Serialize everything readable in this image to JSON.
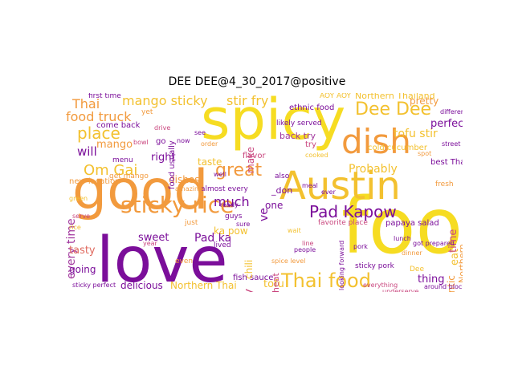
{
  "title": "DEE DEE@4_30_2017@positive",
  "palette": {
    "purple": "#7b0e9a",
    "violet": "#a2389e",
    "magenta": "#c9467e",
    "rose": "#e06a5f",
    "orange": "#f29a3d",
    "amber": "#f3c12f",
    "yellow": "#f6dc22"
  },
  "words": [
    {
      "id": "spicy",
      "text": "spicy"
    },
    {
      "id": "food",
      "text": "food"
    },
    {
      "id": "good",
      "text": "good"
    },
    {
      "id": "love",
      "text": "love"
    },
    {
      "id": "austin",
      "text": "Austin"
    },
    {
      "id": "dish",
      "text": "dish"
    },
    {
      "id": "sticky-rice",
      "text": "sticky rice"
    },
    {
      "id": "thai-food",
      "text": "Thai food"
    },
    {
      "id": "pad-kapow",
      "text": "Pad Kapow"
    },
    {
      "id": "great",
      "text": "great"
    },
    {
      "id": "dee-dee",
      "text": "Dee Dee"
    },
    {
      "id": "om-gai",
      "text": "Om Gai"
    },
    {
      "id": "place",
      "text": "place"
    },
    {
      "id": "mango-sticky",
      "text": "mango sticky"
    },
    {
      "id": "stir-fry",
      "text": "stir fry"
    },
    {
      "id": "food-truck",
      "text": "food truck"
    },
    {
      "id": "thai",
      "text": "Thai"
    },
    {
      "id": "much",
      "text": "much"
    },
    {
      "id": "every-time",
      "text": "every time"
    },
    {
      "id": "tofu-stir",
      "text": "tofu stir"
    },
    {
      "id": "probably",
      "text": "Probably"
    },
    {
      "id": "northern-thailand",
      "text": "Northern Thailand"
    },
    {
      "id": "northern-thai",
      "text": "Northern Thai"
    },
    {
      "id": "sweet",
      "text": "sweet"
    },
    {
      "id": "tasty",
      "text": "tasty"
    },
    {
      "id": "delicious",
      "text": "delicious"
    },
    {
      "id": "tofu",
      "text": "tofu"
    },
    {
      "id": "thing",
      "text": "thing"
    },
    {
      "id": "pad-ka",
      "text": "Pad ka"
    },
    {
      "id": "really",
      "text": "really"
    },
    {
      "id": "perfect",
      "text": "perfect"
    },
    {
      "id": "pretty",
      "text": "pretty"
    },
    {
      "id": "will",
      "text": "will"
    },
    {
      "id": "mango",
      "text": "mango"
    },
    {
      "id": "right",
      "text": "right"
    },
    {
      "id": "taste",
      "text": "taste"
    },
    {
      "id": "make",
      "text": "make"
    },
    {
      "id": "one",
      "text": "one"
    },
    {
      "id": "dishes",
      "text": "dishes"
    },
    {
      "id": "ka-pow",
      "text": "ka pow"
    },
    {
      "id": "eat",
      "text": "eat"
    },
    {
      "id": "time",
      "text": "time"
    },
    {
      "id": "going",
      "text": "going"
    },
    {
      "id": "authentic",
      "text": "authentic"
    },
    {
      "id": "favorite-place",
      "text": "favorite place"
    },
    {
      "id": "papaya-salad",
      "text": "papaya salad"
    },
    {
      "id": "best-thai",
      "text": "best Thai"
    },
    {
      "id": "cold-cucumber",
      "text": "cold cucumber"
    },
    {
      "id": "fish-sauce",
      "text": "fish sauce"
    },
    {
      "id": "almost-every",
      "text": "almost every"
    },
    {
      "id": "back-try",
      "text": "back try"
    },
    {
      "id": "come-back",
      "text": "come back"
    },
    {
      "id": "first-time",
      "text": "first time"
    },
    {
      "id": "new-location",
      "text": "new location"
    },
    {
      "id": "food-usually",
      "text": "food usually"
    },
    {
      "id": "ethnic-food",
      "text": "ethnic food"
    },
    {
      "id": "flavor",
      "text": "flavor"
    },
    {
      "id": "heat",
      "text": "heat"
    },
    {
      "id": "egg",
      "text": "egg"
    },
    {
      "id": "chili",
      "text": "chili"
    },
    {
      "id": "don",
      "text": "_don"
    },
    {
      "id": "ve",
      "text": "ve"
    },
    {
      "id": "northern",
      "text": "Northern"
    },
    {
      "id": "likely-served",
      "text": "likely served"
    },
    {
      "id": "looking-forward",
      "text": "looking forward"
    },
    {
      "id": "get-mango",
      "text": "get mango"
    },
    {
      "id": "sticky-pork",
      "text": "sticky pork"
    },
    {
      "id": "yet",
      "text": "yet"
    },
    {
      "id": "different",
      "text": "different"
    },
    {
      "id": "even",
      "text": "even"
    },
    {
      "id": "go",
      "text": "go"
    },
    {
      "id": "try",
      "text": "try"
    },
    {
      "id": "menu",
      "text": "menu"
    },
    {
      "id": "lived",
      "text": "lived"
    },
    {
      "id": "also",
      "text": "also"
    },
    {
      "id": "aoy-aoy",
      "text": "AOY AOY"
    },
    {
      "id": "guys",
      "text": "guys"
    },
    {
      "id": "meal",
      "text": "meal"
    },
    {
      "id": "ever",
      "text": "ever"
    },
    {
      "id": "dee",
      "text": "Dee"
    },
    {
      "id": "sticky-perfect",
      "text": "sticky perfect"
    },
    {
      "id": "spice-level",
      "text": "spice level"
    },
    {
      "id": "got-prepared",
      "text": "got prepared"
    },
    {
      "id": "drive",
      "text": "drive"
    },
    {
      "id": "ready",
      "text": "ready"
    },
    {
      "id": "just",
      "text": "just"
    },
    {
      "id": "year",
      "text": "year"
    },
    {
      "id": "now",
      "text": "now"
    },
    {
      "id": "order",
      "text": "order"
    },
    {
      "id": "cooked",
      "text": "cooked"
    },
    {
      "id": "fresh",
      "text": "fresh"
    },
    {
      "id": "bowl",
      "text": "bowl"
    },
    {
      "id": "around-block",
      "text": "around block"
    },
    {
      "id": "everything",
      "text": "everything"
    },
    {
      "id": "underserve",
      "text": "underserve"
    },
    {
      "id": "see",
      "text": "see"
    },
    {
      "id": "green",
      "text": "green"
    },
    {
      "id": "street",
      "text": "street"
    },
    {
      "id": "amazing",
      "text": "amazing"
    },
    {
      "id": "well",
      "text": "well"
    },
    {
      "id": "spot",
      "text": "spot"
    },
    {
      "id": "sure",
      "text": "sure"
    },
    {
      "id": "wait",
      "text": "wait"
    },
    {
      "id": "people",
      "text": "people"
    },
    {
      "id": "line",
      "text": "line"
    },
    {
      "id": "lunch",
      "text": "lunch"
    },
    {
      "id": "dinner",
      "text": "dinner"
    },
    {
      "id": "serve",
      "text": "serve"
    },
    {
      "id": "rice",
      "text": "rice"
    },
    {
      "id": "pork",
      "text": "pork"
    }
  ]
}
